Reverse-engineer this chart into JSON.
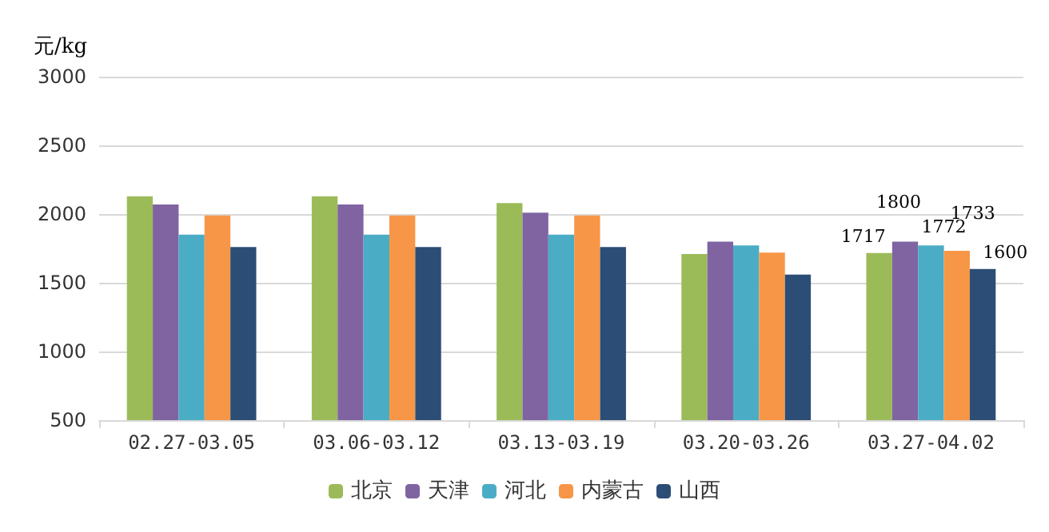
{
  "chart_data": {
    "type": "bar",
    "ylabel": "元/kg",
    "categories": [
      "02.27-03.05",
      "03.06-03.12",
      "03.13-03.19",
      "03.20-03.26",
      "03.27-04.02"
    ],
    "series": [
      {
        "name": "北京",
        "color": "#9bbb59",
        "values": [
          2130,
          2130,
          2080,
          1710,
          1717
        ],
        "value_labels": [
          null,
          null,
          null,
          null,
          "1717"
        ]
      },
      {
        "name": "天津",
        "color": "#8064a2",
        "values": [
          2070,
          2070,
          2010,
          1800,
          1800
        ],
        "value_labels": [
          null,
          null,
          null,
          null,
          "1800"
        ]
      },
      {
        "name": "河北",
        "color": "#4bacc6",
        "values": [
          1850,
          1850,
          1850,
          1772,
          1772
        ],
        "value_labels": [
          null,
          null,
          null,
          null,
          "1772"
        ]
      },
      {
        "name": "内蒙古",
        "color": "#f79646",
        "values": [
          1990,
          1990,
          1990,
          1720,
          1733
        ],
        "value_labels": [
          null,
          null,
          null,
          null,
          "1733"
        ]
      },
      {
        "name": "山西",
        "color": "#2c4d75",
        "values": [
          1760,
          1760,
          1760,
          1560,
          1600
        ],
        "value_labels": [
          null,
          null,
          null,
          null,
          "1600"
        ]
      }
    ],
    "ylim": [
      500,
      3000
    ],
    "yticks": [
      500,
      1000,
      1500,
      2000,
      2500,
      3000
    ],
    "grid": "y",
    "legend": "bottom"
  }
}
